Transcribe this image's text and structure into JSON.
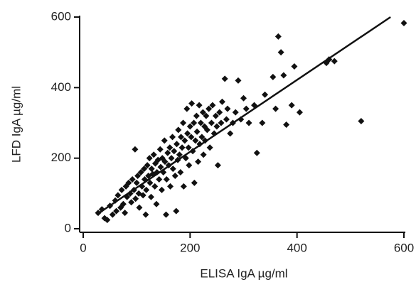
{
  "chart_data": {
    "type": "scatter",
    "x_label": "ELISA  IgA µg/ml",
    "y_label": "LFD IgA µg/ml",
    "xlim": [
      0,
      600
    ],
    "ylim": [
      0,
      600
    ],
    "xticks": [
      0,
      200,
      400,
      600
    ],
    "yticks": [
      0,
      200,
      400,
      600
    ],
    "series": [
      {
        "color": "#111111",
        "x": [
          28,
          35,
          40,
          45,
          50,
          55,
          60,
          62,
          65,
          70,
          72,
          75,
          78,
          80,
          82,
          85,
          88,
          90,
          92,
          95,
          97,
          98,
          100,
          102,
          104,
          105,
          108,
          110,
          112,
          114,
          115,
          117,
          118,
          120,
          122,
          124,
          125,
          127,
          128,
          130,
          132,
          134,
          135,
          137,
          138,
          140,
          142,
          144,
          145,
          147,
          148,
          150,
          152,
          153,
          155,
          156,
          158,
          160,
          162,
          163,
          165,
          167,
          168,
          170,
          172,
          174,
          175,
          177,
          178,
          180,
          182,
          183,
          185,
          187,
          188,
          190,
          192,
          194,
          195,
          197,
          198,
          200,
          202,
          203,
          205,
          207,
          208,
          210,
          212,
          213,
          215,
          217,
          218,
          220,
          222,
          224,
          225,
          227,
          228,
          230,
          232,
          235,
          237,
          240,
          242,
          245,
          248,
          250,
          252,
          255,
          258,
          260,
          265,
          268,
          270,
          275,
          280,
          285,
          290,
          295,
          300,
          305,
          310,
          320,
          325,
          335,
          340,
          355,
          360,
          365,
          370,
          375,
          380,
          390,
          395,
          405,
          455,
          460,
          470,
          520,
          600
        ],
        "values": [
          45,
          55,
          30,
          25,
          65,
          40,
          80,
          50,
          95,
          60,
          110,
          70,
          45,
          120,
          90,
          130,
          100,
          75,
          140,
          110,
          225,
          85,
          130,
          150,
          100,
          60,
          160,
          120,
          95,
          170,
          140,
          40,
          110,
          180,
          150,
          200,
          130,
          90,
          170,
          155,
          210,
          120,
          185,
          70,
          160,
          195,
          140,
          225,
          175,
          110,
          200,
          160,
          250,
          190,
          40,
          140,
          215,
          180,
          230,
          120,
          200,
          260,
          170,
          220,
          150,
          50,
          240,
          195,
          280,
          210,
          160,
          260,
          230,
          300,
          120,
          250,
          200,
          340,
          270,
          230,
          180,
          290,
          260,
          355,
          220,
          300,
          130,
          250,
          320,
          275,
          190,
          350,
          240,
          300,
          260,
          330,
          210,
          290,
          250,
          320,
          280,
          340,
          230,
          300,
          350,
          270,
          320,
          290,
          180,
          330,
          300,
          360,
          425,
          310,
          340,
          270,
          300,
          330,
          420,
          310,
          370,
          340,
          300,
          350,
          215,
          300,
          380,
          430,
          340,
          545,
          500,
          435,
          295,
          350,
          460,
          330,
          470,
          480,
          475,
          305,
          583
        ]
      }
    ],
    "fit_line": {
      "color": "#111111",
      "x": [
        25,
        575
      ],
      "y": [
        40,
        600
      ]
    }
  }
}
